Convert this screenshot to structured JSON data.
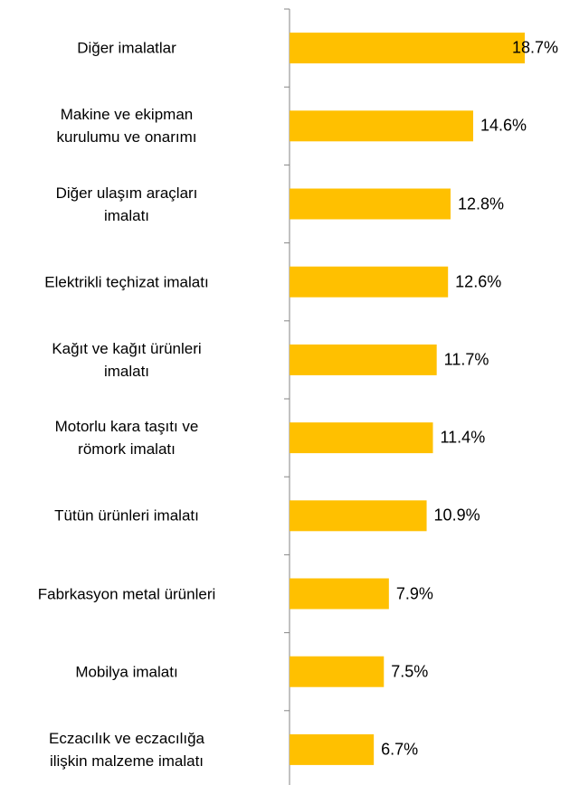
{
  "chart_data": {
    "type": "bar",
    "orientation": "horizontal",
    "categories": [
      "Diğer imalatlar",
      "Makine ve ekipman\nkurulumu ve onarımı",
      "Diğer ulaşım araçları\nimalatı",
      "Elektrikli teçhizat imalatı",
      "Kağıt ve kağıt ürünleri\nimalatı",
      "Motorlu kara taşıtı ve\nrömork imalatı",
      "Tütün ürünleri imalatı",
      "Fabrkasyon metal ürünleri",
      "Mobilya imalatı",
      "Eczacılık ve eczacılığa\nilişkin malzeme imalatı"
    ],
    "values": [
      18.7,
      14.6,
      12.8,
      12.6,
      11.7,
      11.4,
      10.9,
      7.9,
      7.5,
      6.7
    ],
    "value_labels": [
      "18.7%",
      "14.6%",
      "12.8%",
      "12.6%",
      "11.7%",
      "11.4%",
      "10.9%",
      "7.9%",
      "7.5%",
      "6.7%"
    ],
    "color": "#ffc000"
  }
}
